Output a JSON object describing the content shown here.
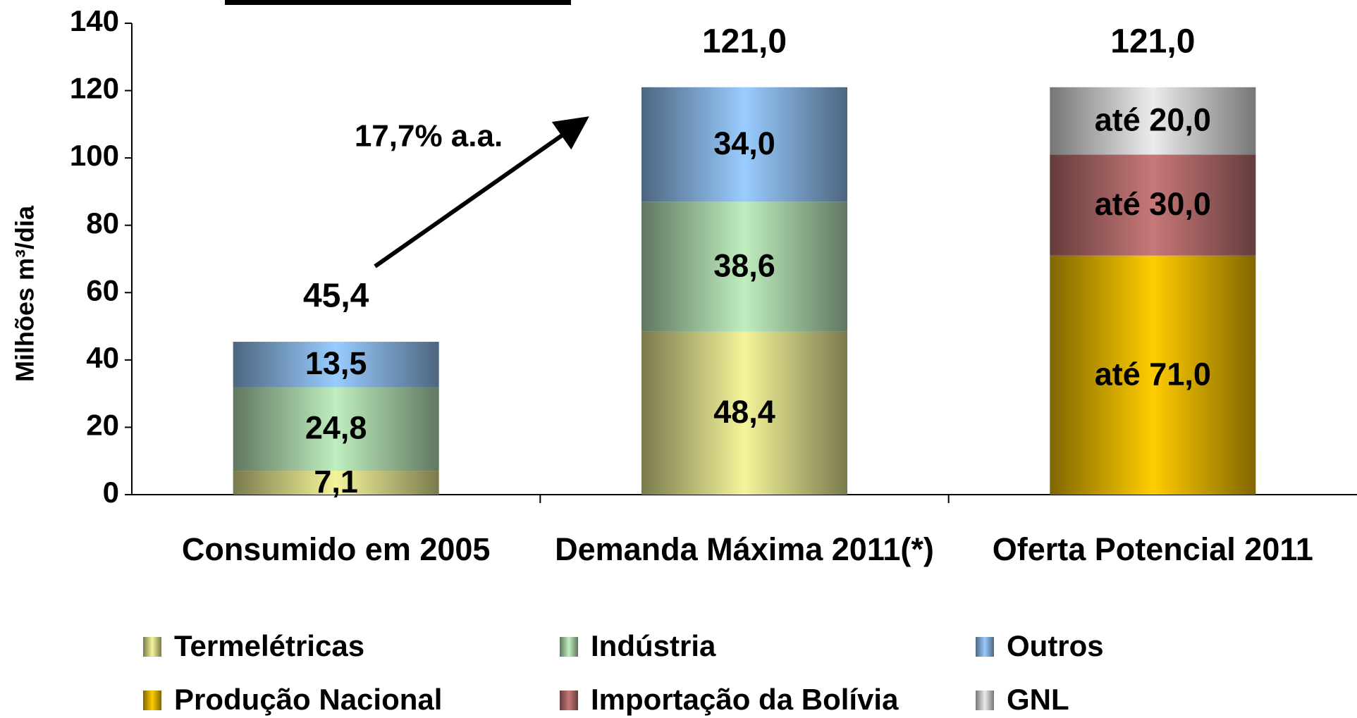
{
  "chart_data": {
    "type": "stacked_bar",
    "y_label": "Milhões m³/dia",
    "categories": [
      "Consumido em 2005",
      "Demanda Máxima 2011(*)",
      "Oferta Potencial 2011"
    ],
    "series": [
      {
        "name": "Termelétricas",
        "color": "#f4f49a",
        "values": [
          7.1,
          48.4,
          null
        ],
        "value_labels": [
          "7,1",
          "48,4",
          null
        ]
      },
      {
        "name": "Indústria",
        "color": "#bfeebf",
        "values": [
          24.8,
          38.6,
          null
        ],
        "value_labels": [
          "24,8",
          "38,6",
          null
        ]
      },
      {
        "name": "Outros",
        "color": "#99ccff",
        "values": [
          13.5,
          34.0,
          null
        ],
        "value_labels": [
          "13,5",
          "34,0",
          null
        ]
      },
      {
        "name": "Produção Nacional",
        "color": "#ffcc00",
        "values": [
          null,
          null,
          71.0
        ],
        "value_labels": [
          null,
          null,
          "até 71,0"
        ]
      },
      {
        "name": "Importação da Bolívia",
        "color": "#c87878",
        "values": [
          null,
          null,
          30.0
        ],
        "value_labels": [
          null,
          null,
          "até 30,0"
        ]
      },
      {
        "name": "GNL",
        "color": "#ececec",
        "values": [
          null,
          null,
          20.0
        ],
        "value_labels": [
          null,
          null,
          "até 20,0"
        ]
      }
    ],
    "totals": [
      45.4,
      121.0,
      121.0
    ],
    "total_labels": [
      "45,4",
      "121,0",
      "121,0"
    ],
    "annotation": "17,7% a.a.",
    "ylim": [
      0,
      140
    ],
    "yticks": [
      0,
      20,
      40,
      60,
      80,
      100,
      120,
      140
    ]
  }
}
